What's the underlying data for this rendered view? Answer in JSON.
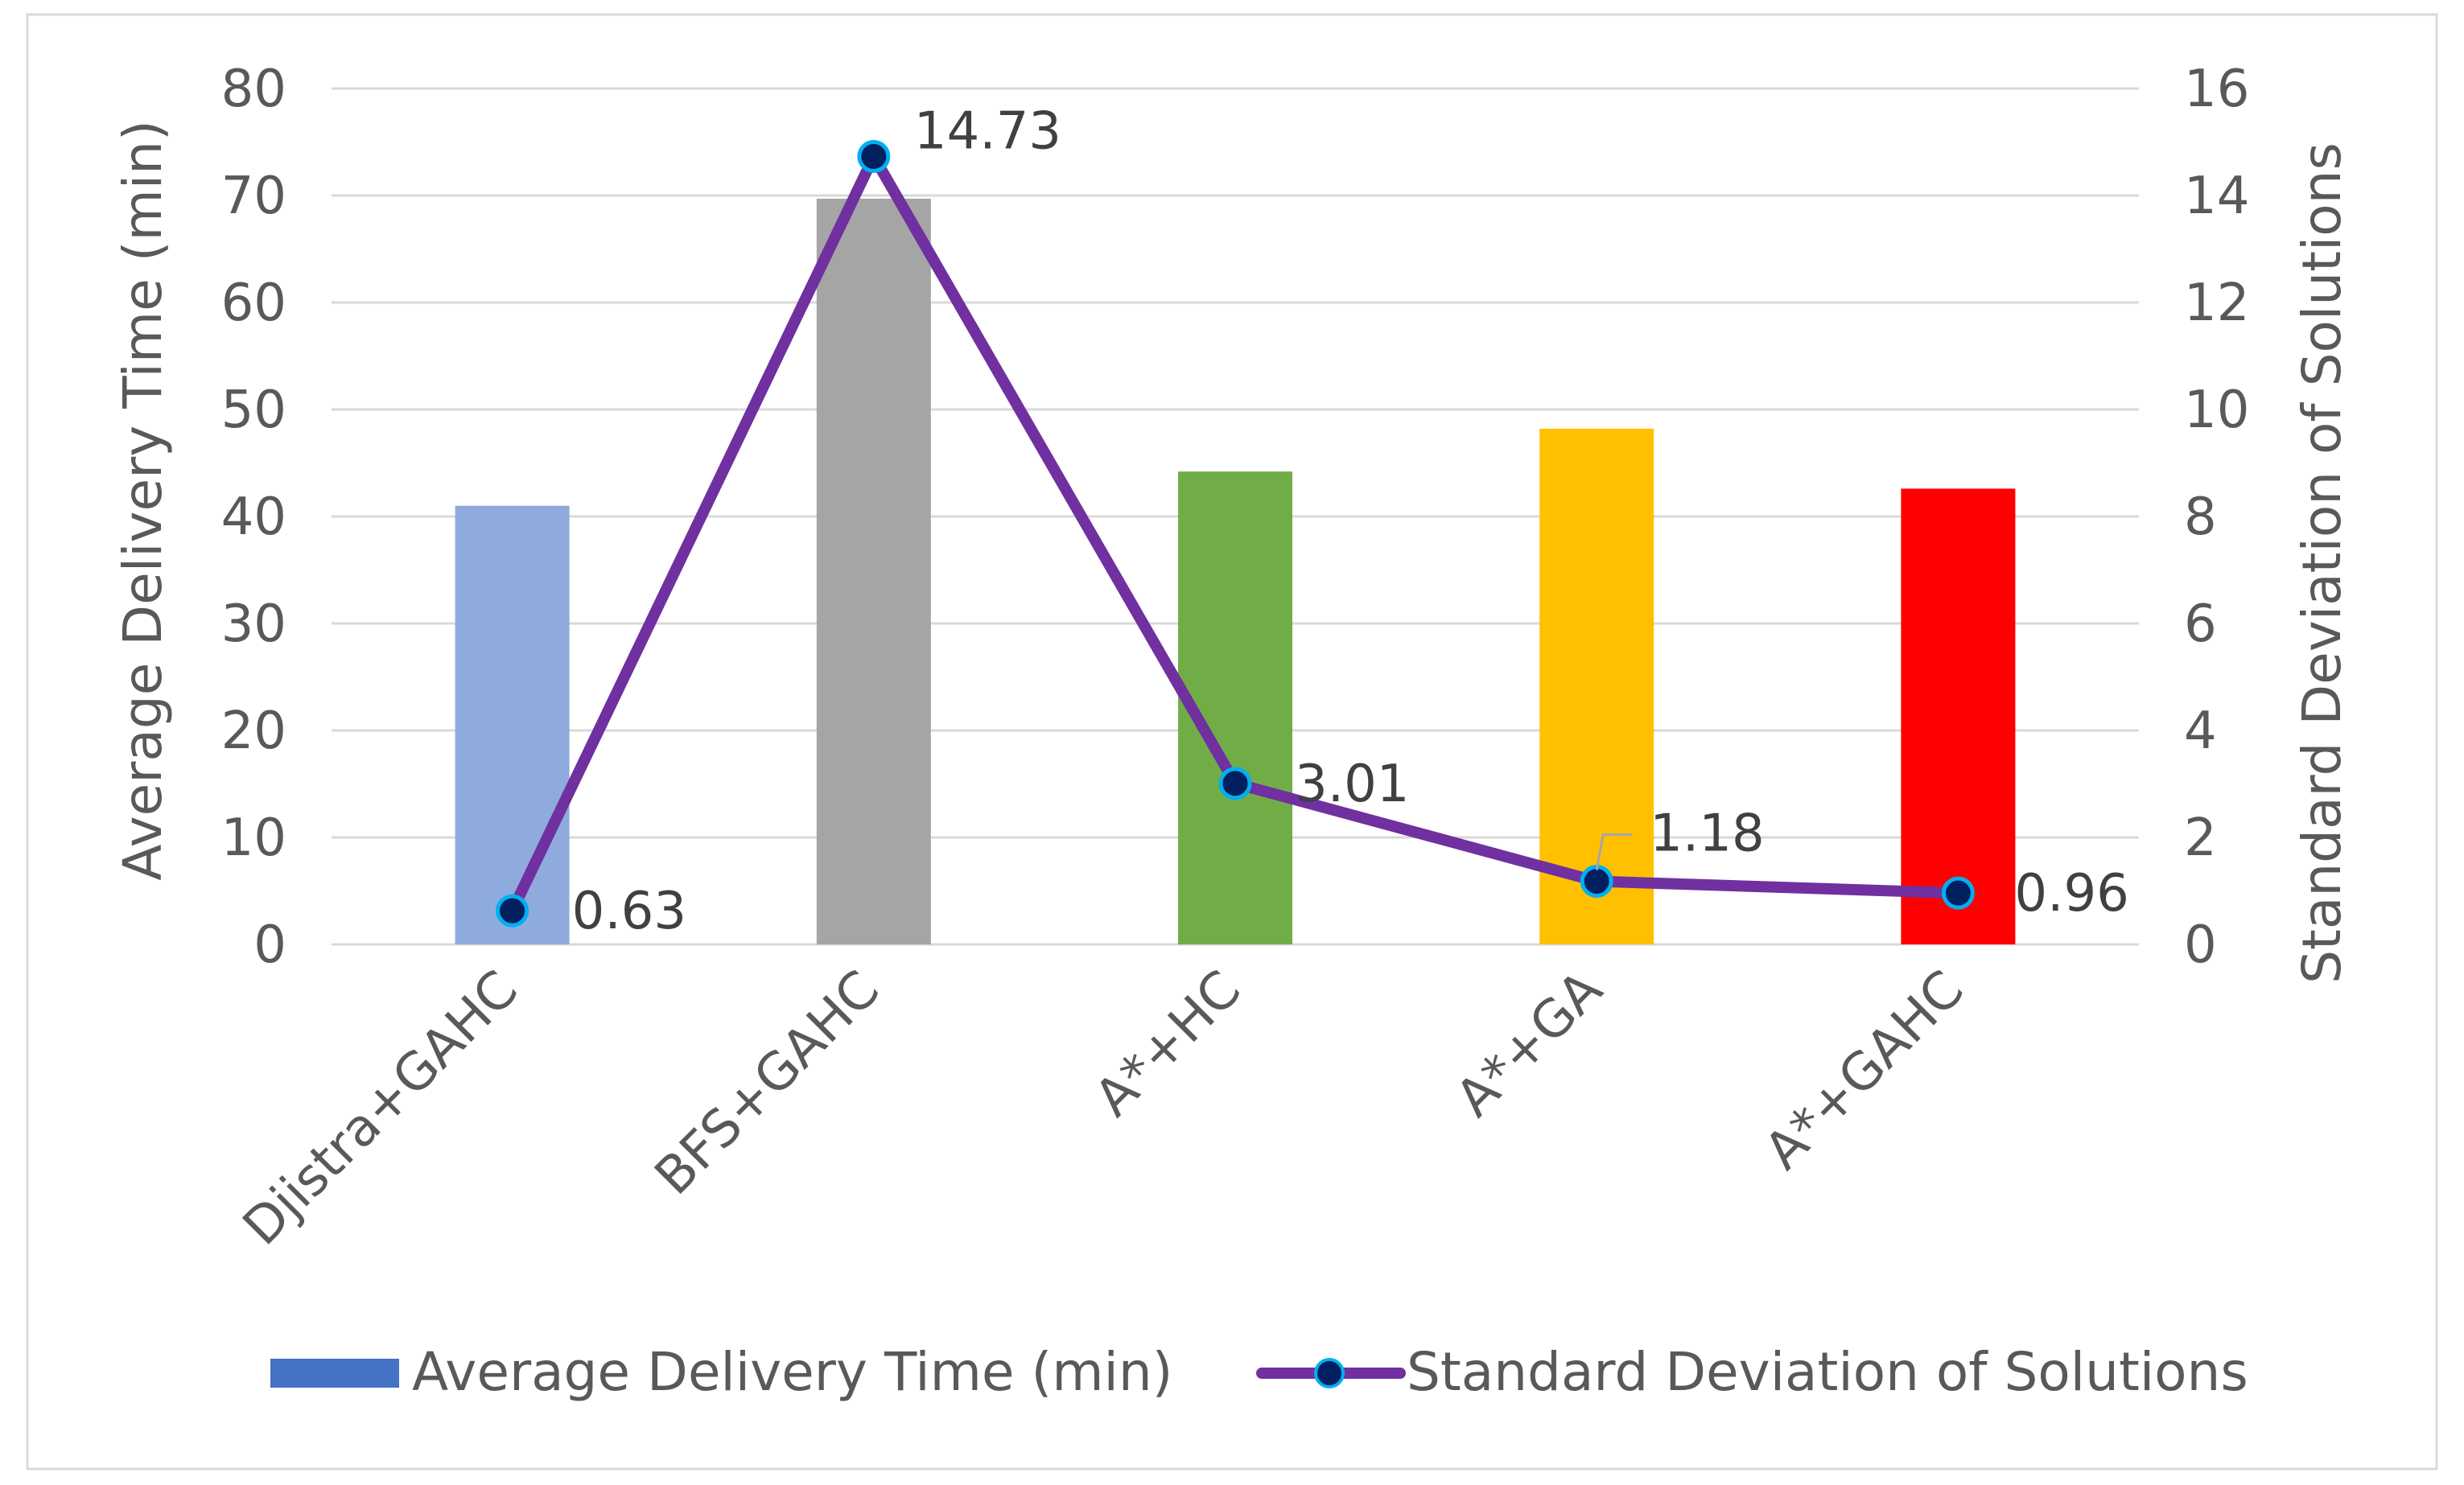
{
  "chart_data": {
    "type": "bar",
    "categories": [
      "Djistra+GAHC",
      "BFS+GAHC",
      "A*+HC",
      "A*+GA",
      "A*+GAHC"
    ],
    "series": [
      {
        "name": "Average Delivery Time (min)",
        "type": "bar",
        "axis": "left",
        "values": [
          41,
          69.7,
          44.2,
          48.2,
          42.6
        ],
        "colors": [
          "#8FAADC",
          "#A5A5A5",
          "#70AD47",
          "#FFC000",
          "#FF0000"
        ],
        "legend_color": "#4472C4"
      },
      {
        "name": "Standard Deviation of Solutions",
        "type": "line",
        "axis": "right",
        "values": [
          0.63,
          14.73,
          3.01,
          1.18,
          0.96
        ],
        "data_labels": [
          "0.63",
          "14.73",
          "3.01",
          "1.18",
          "0.96"
        ],
        "line_color": "#7030A0",
        "marker_fill": "#002060",
        "marker_edge": "#00B0F0"
      }
    ],
    "title": "",
    "xlabel": "",
    "ylabel": "Average Delivery Time (min)",
    "y2label": "Standard Deviation of Solutions",
    "ylim": [
      0,
      80
    ],
    "y2lim": [
      0,
      16
    ],
    "yticks": [
      "0",
      "10",
      "20",
      "30",
      "40",
      "50",
      "60",
      "70",
      "80"
    ],
    "y2ticks": [
      "0",
      "2",
      "4",
      "6",
      "8",
      "10",
      "12",
      "14",
      "16"
    ],
    "grid": true,
    "legend": "bottom"
  }
}
